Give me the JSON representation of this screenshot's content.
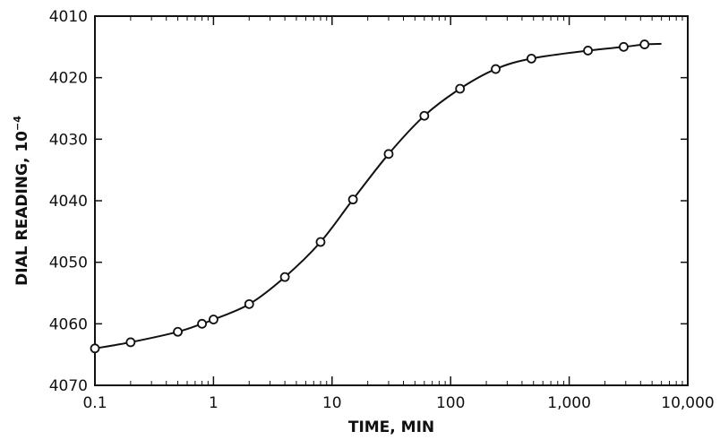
{
  "chart_data": {
    "type": "line",
    "title": "",
    "xlabel": "TIME, MIN",
    "ylabel_main": "DIAL READING, 10",
    "ylabel_sup": "−4",
    "x_scale": "log",
    "xlim": [
      0.1,
      10000
    ],
    "ylim": [
      4070,
      4010
    ],
    "y_inverted": true,
    "grid": false,
    "x_ticks": [
      {
        "value": 0.1,
        "label": "0.1"
      },
      {
        "value": 1,
        "label": "1"
      },
      {
        "value": 10,
        "label": "10"
      },
      {
        "value": 100,
        "label": "100"
      },
      {
        "value": 1000,
        "label": "1,000"
      },
      {
        "value": 10000,
        "label": "10,000"
      }
    ],
    "y_ticks": [
      {
        "value": 4010,
        "label": "4010"
      },
      {
        "value": 4020,
        "label": "4020"
      },
      {
        "value": 4030,
        "label": "4030"
      },
      {
        "value": 4040,
        "label": "4040"
      },
      {
        "value": 4050,
        "label": "4050"
      },
      {
        "value": 4060,
        "label": "4060"
      },
      {
        "value": 4070,
        "label": "4070"
      }
    ],
    "series": [
      {
        "points": [
          {
            "x": 0.1,
            "y": 4064.0
          },
          {
            "x": 0.2,
            "y": 4063.0
          },
          {
            "x": 0.5,
            "y": 4061.3
          },
          {
            "x": 0.8,
            "y": 4060.0
          },
          {
            "x": 1.0,
            "y": 4059.3
          },
          {
            "x": 2.0,
            "y": 4056.8
          },
          {
            "x": 4.0,
            "y": 4052.4
          },
          {
            "x": 8.0,
            "y": 4046.7
          },
          {
            "x": 15.0,
            "y": 4039.8
          },
          {
            "x": 30.0,
            "y": 4032.4
          },
          {
            "x": 60.0,
            "y": 4026.2
          },
          {
            "x": 120.0,
            "y": 4021.8
          },
          {
            "x": 240.0,
            "y": 4018.6
          },
          {
            "x": 480.0,
            "y": 4016.9
          },
          {
            "x": 1440.0,
            "y": 4015.6
          },
          {
            "x": 2880.0,
            "y": 4015.0
          },
          {
            "x": 4320.0,
            "y": 4014.6
          }
        ],
        "curve_end": {
          "x": 6000,
          "y": 4014.5
        }
      }
    ]
  }
}
